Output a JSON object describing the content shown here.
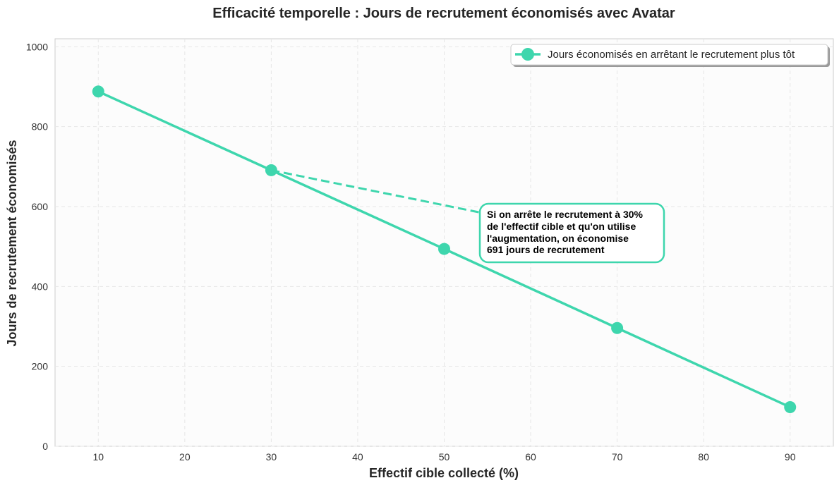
{
  "chart_data": {
    "type": "line",
    "title": "Efficacité temporelle : Jours de recrutement économisés avec Avatar",
    "xlabel": "Effectif cible collecté (%)",
    "ylabel": "Jours de recrutement économisés",
    "xlim": [
      5,
      95
    ],
    "ylim": [
      0,
      1020
    ],
    "x_ticks": [
      10,
      20,
      30,
      40,
      50,
      60,
      70,
      80,
      90
    ],
    "y_ticks": [
      0,
      200,
      400,
      600,
      800,
      1000
    ],
    "grid": true,
    "legend_position": "top-right",
    "series": [
      {
        "name": "Jours économisés en arrêtant le recrutement plus tôt",
        "color": "#3ed6ad",
        "x": [
          10,
          30,
          50,
          70,
          90
        ],
        "y": [
          888,
          691,
          494,
          296,
          98
        ]
      }
    ],
    "annotation": {
      "lines": [
        "Si on arrête le recrutement à 30%",
        "de l'effectif cible et qu'on utilise",
        "l'augmentation, on économise",
        "691 jours de recrutement"
      ],
      "point": [
        30,
        691
      ],
      "text_anchor": [
        55,
        580
      ]
    }
  }
}
